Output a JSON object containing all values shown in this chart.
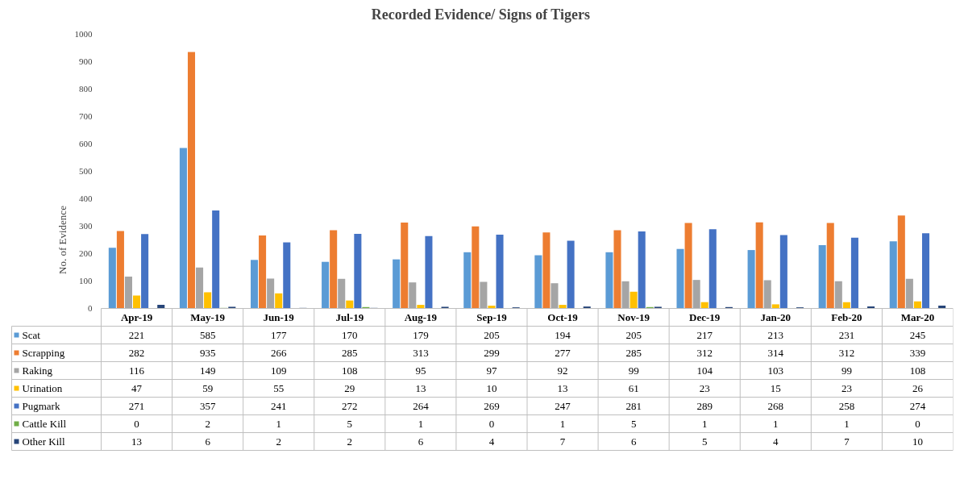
{
  "chart_data": {
    "type": "bar",
    "title": "Recorded Evidence/ Signs of Tigers",
    "ylabel": "No. of Evidence",
    "categories": [
      "Apr-19",
      "May-19",
      "Jun-19",
      "Jul-19",
      "Aug-19",
      "Sep-19",
      "Oct-19",
      "Nov-19",
      "Dec-19",
      "Jan-20",
      "Feb-20",
      "Mar-20"
    ],
    "series": [
      {
        "name": "Scat",
        "color": "#5b9bd5",
        "values": [
          221,
          585,
          177,
          170,
          179,
          205,
          194,
          205,
          217,
          213,
          231,
          245
        ]
      },
      {
        "name": "Scrapping",
        "color": "#ed7d31",
        "values": [
          282,
          935,
          266,
          285,
          313,
          299,
          277,
          285,
          312,
          314,
          312,
          339
        ]
      },
      {
        "name": "Raking",
        "color": "#a5a5a5",
        "values": [
          116,
          149,
          109,
          108,
          95,
          97,
          92,
          99,
          104,
          103,
          99,
          108
        ]
      },
      {
        "name": "Urination",
        "color": "#ffc000",
        "values": [
          47,
          59,
          55,
          29,
          13,
          10,
          13,
          61,
          23,
          15,
          23,
          26
        ]
      },
      {
        "name": "Pugmark",
        "color": "#4472c4",
        "values": [
          271,
          357,
          241,
          272,
          264,
          269,
          247,
          281,
          289,
          268,
          258,
          274
        ]
      },
      {
        "name": "Cattle Kill",
        "color": "#70ad47",
        "values": [
          0,
          2,
          1,
          5,
          1,
          0,
          1,
          5,
          1,
          1,
          1,
          0
        ]
      },
      {
        "name": "Other Kill",
        "color": "#264478",
        "values": [
          13,
          6,
          2,
          2,
          6,
          4,
          7,
          6,
          5,
          4,
          7,
          10
        ]
      }
    ],
    "ylim": [
      0,
      1000
    ],
    "yticks": [
      0,
      100,
      200,
      300,
      400,
      500,
      600,
      700,
      800,
      900,
      1000
    ],
    "data_labels": true,
    "legend": "bottom"
  }
}
